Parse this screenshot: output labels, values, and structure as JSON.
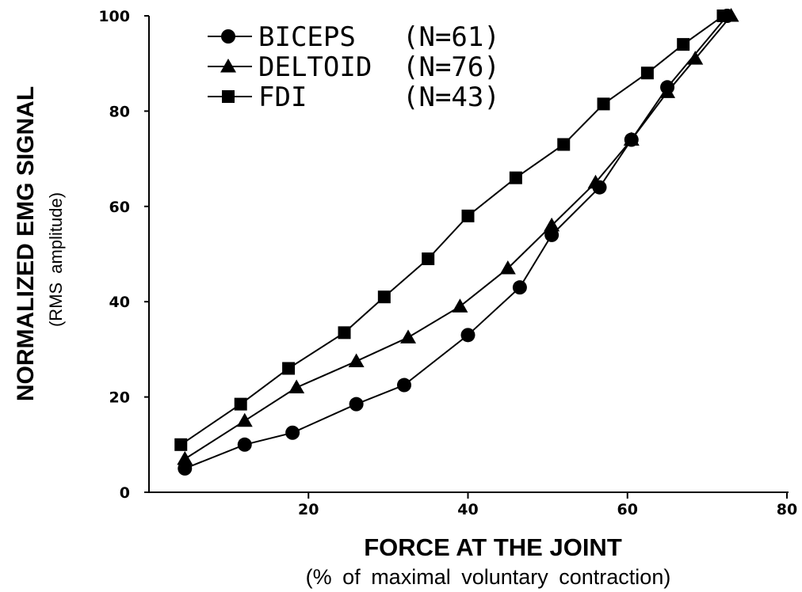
{
  "chart_data": {
    "type": "line",
    "title": "",
    "xlabel": "FORCE AT THE JOINT",
    "xlabel_sub": "(% of maximal voluntary contraction)",
    "ylabel": "NORMALIZED EMG SIGNAL",
    "ylabel_sub": "(RMS amplitude)",
    "xlim": [
      0,
      80
    ],
    "ylim": [
      0,
      100
    ],
    "x_ticks": [
      "20",
      "40",
      "60",
      "80"
    ],
    "y_ticks": [
      "0",
      "20",
      "40",
      "60",
      "80",
      "100"
    ],
    "grid": false,
    "legend_position": "top-left",
    "series": [
      {
        "name": "BICEPS",
        "n_label": "(N=61)",
        "marker": "circle",
        "color": "#000000",
        "x": [
          4.5,
          12,
          18,
          26,
          32,
          40,
          46.5,
          50.5,
          56.5,
          60.5,
          65,
          72.5
        ],
        "y": [
          5,
          10,
          12.5,
          18.5,
          22.5,
          33,
          43,
          54,
          64,
          74,
          85,
          100
        ]
      },
      {
        "name": "DELTOID",
        "n_label": "(N=76)",
        "marker": "triangle",
        "color": "#000000",
        "x": [
          4.5,
          12,
          18.5,
          26,
          32.5,
          39,
          45,
          50.5,
          56,
          60.5,
          65,
          68.5,
          73
        ],
        "y": [
          7,
          15,
          22,
          27.5,
          32.5,
          39,
          47,
          56,
          65,
          74,
          84,
          91,
          100
        ]
      },
      {
        "name": "FDI",
        "n_label": "(N=43)",
        "marker": "square",
        "color": "#000000",
        "x": [
          4,
          11.5,
          17.5,
          24.5,
          29.5,
          35,
          40,
          46,
          52,
          57,
          62.5,
          67,
          72
        ],
        "y": [
          10,
          18.5,
          26,
          33.5,
          41,
          49,
          58,
          66,
          73,
          81.5,
          88,
          94,
          100
        ]
      }
    ]
  }
}
